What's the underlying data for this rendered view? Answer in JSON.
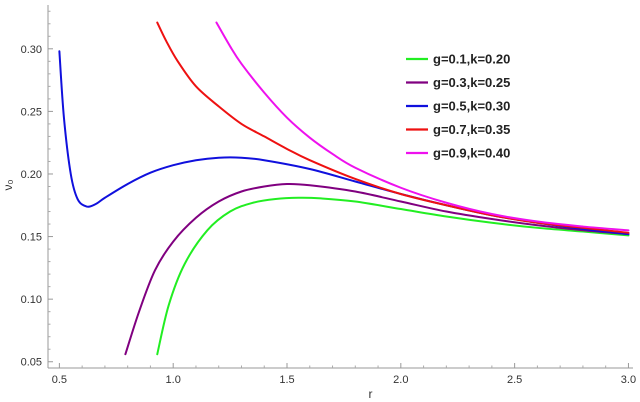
{
  "chart_data": {
    "type": "line",
    "xlabel": "r",
    "ylabel": "ν₀",
    "xlim": [
      0.45,
      3.02
    ],
    "ylim": [
      0.045,
      0.335
    ],
    "xticks": [
      0.5,
      1.0,
      1.5,
      2.0,
      2.5,
      3.0
    ],
    "xtick_labels": [
      "0.5",
      "1.0",
      "1.5",
      "2.0",
      "2.5",
      "3.0"
    ],
    "yticks": [
      0.05,
      0.1,
      0.15,
      0.2,
      0.25,
      0.3
    ],
    "ytick_labels": [
      "0.05",
      "0.10",
      "0.15",
      "0.20",
      "0.25",
      "0.30"
    ],
    "legend_position": "top-right",
    "series": [
      {
        "name": "g=0.1,k=0.20",
        "color": "#22ee22",
        "x": [
          0.93,
          0.98,
          1.05,
          1.15,
          1.25,
          1.35,
          1.45,
          1.55,
          1.65,
          1.8,
          2.0,
          2.2,
          2.4,
          2.6,
          2.8,
          3.0
        ],
        "y": [
          0.056,
          0.095,
          0.128,
          0.155,
          0.17,
          0.177,
          0.18,
          0.181,
          0.1805,
          0.178,
          0.172,
          0.166,
          0.161,
          0.157,
          0.154,
          0.151
        ]
      },
      {
        "name": "g=0.3,k=0.25",
        "color": "#800080",
        "x": [
          0.79,
          0.85,
          0.92,
          1.0,
          1.1,
          1.2,
          1.3,
          1.4,
          1.5,
          1.6,
          1.8,
          2.0,
          2.2,
          2.4,
          2.6,
          2.8,
          3.0
        ],
        "y": [
          0.056,
          0.09,
          0.123,
          0.146,
          0.165,
          0.178,
          0.186,
          0.19,
          0.192,
          0.191,
          0.186,
          0.178,
          0.17,
          0.164,
          0.159,
          0.155,
          0.152
        ]
      },
      {
        "name": "g=0.5,k=0.30",
        "color": "#1010dd",
        "x": [
          0.5,
          0.52,
          0.55,
          0.58,
          0.62,
          0.66,
          0.7,
          0.8,
          0.9,
          1.0,
          1.1,
          1.2,
          1.3,
          1.4,
          1.6,
          1.8,
          2.0,
          2.2,
          2.4,
          2.6,
          2.8,
          3.0
        ],
        "y": [
          0.298,
          0.245,
          0.2,
          0.18,
          0.174,
          0.176,
          0.181,
          0.192,
          0.201,
          0.207,
          0.211,
          0.213,
          0.213,
          0.211,
          0.204,
          0.194,
          0.184,
          0.175,
          0.167,
          0.161,
          0.156,
          0.152
        ]
      },
      {
        "name": "g=0.7,k=0.35",
        "color": "#ee1111",
        "x": [
          0.93,
          0.97,
          1.02,
          1.1,
          1.2,
          1.3,
          1.4,
          1.5,
          1.6,
          1.8,
          2.0,
          2.2,
          2.4,
          2.6,
          2.8,
          3.0
        ],
        "y": [
          0.321,
          0.306,
          0.29,
          0.27,
          0.254,
          0.24,
          0.23,
          0.22,
          0.211,
          0.196,
          0.184,
          0.175,
          0.167,
          0.161,
          0.157,
          0.153
        ]
      },
      {
        "name": "g=0.9,k=0.40",
        "color": "#ee11ee",
        "x": [
          1.19,
          1.25,
          1.3,
          1.4,
          1.5,
          1.6,
          1.7,
          1.8,
          2.0,
          2.2,
          2.4,
          2.6,
          2.8,
          3.0
        ],
        "y": [
          0.321,
          0.302,
          0.288,
          0.265,
          0.245,
          0.229,
          0.216,
          0.205,
          0.189,
          0.177,
          0.168,
          0.162,
          0.158,
          0.155
        ]
      }
    ]
  }
}
